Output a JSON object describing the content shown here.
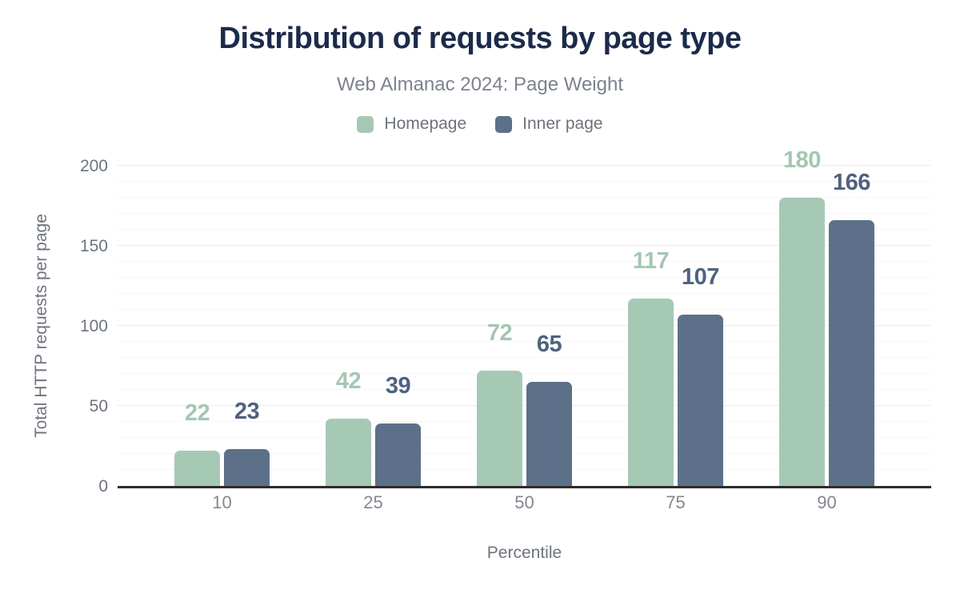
{
  "header": {
    "title": "Distribution of requests by page type",
    "subtitle": "Web Almanac 2024: Page Weight"
  },
  "chart_data": {
    "type": "bar",
    "title": "Distribution of requests by page type",
    "subtitle": "Web Almanac 2024: Page Weight",
    "categories": [
      "10",
      "25",
      "50",
      "75",
      "90"
    ],
    "series": [
      {
        "name": "Homepage",
        "color": "#a6c9b5",
        "label_color": "#a3c7b2",
        "values": [
          22,
          42,
          72,
          117,
          180
        ]
      },
      {
        "name": "Inner page",
        "color": "#5d7089",
        "label_color": "#4e6280",
        "values": [
          23,
          39,
          65,
          107,
          166
        ]
      }
    ],
    "xlabel": "Percentile",
    "ylabel": "Total HTTP requests per page",
    "ylim": [
      0,
      200
    ],
    "yticks": [
      0,
      50,
      100,
      150,
      200
    ],
    "minor_grid_step": 10,
    "major_grid_step": 50,
    "grid": "horizontal",
    "legend_position": "top",
    "data_labels": true
  }
}
